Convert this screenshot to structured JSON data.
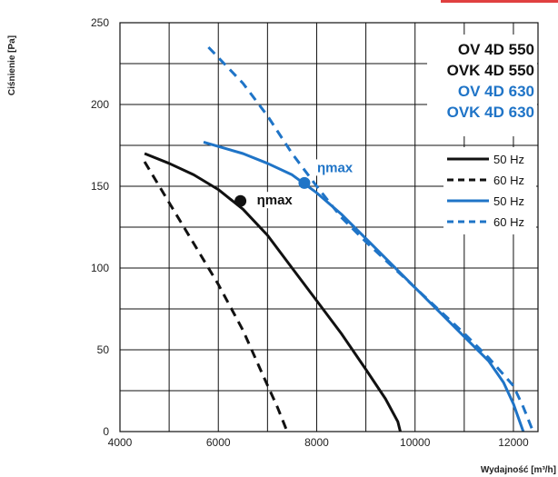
{
  "chart_data": {
    "type": "line",
    "title": "",
    "xlabel": "Wydajność [m³/h]",
    "ylabel": "Ciśnienie [Pa]",
    "xlim": [
      4000,
      12500
    ],
    "ylim": [
      0,
      250
    ],
    "x_ticks": [
      4000,
      6000,
      8000,
      10000,
      12000
    ],
    "y_ticks": [
      0,
      50,
      100,
      150,
      200,
      250
    ],
    "grid": true,
    "colors": {
      "black": "#111111",
      "blue": "#1f74c7",
      "accent_bar": "#e04040"
    },
    "models": [
      {
        "label": "OV 4D 550",
        "color": "#111111"
      },
      {
        "label": "OVK 4D 550",
        "color": "#111111"
      },
      {
        "label": "OV 4D 630",
        "color": "#1f74c7"
      },
      {
        "label": "OVK 4D 630",
        "color": "#1f74c7"
      }
    ],
    "legend": [
      {
        "label": "50 Hz",
        "color": "#111111",
        "dash": false
      },
      {
        "label": "60 Hz",
        "color": "#111111",
        "dash": true
      },
      {
        "label": "50 Hz",
        "color": "#1f74c7",
        "dash": false
      },
      {
        "label": "60 Hz",
        "color": "#1f74c7",
        "dash": true
      }
    ],
    "series": [
      {
        "color": "#111111",
        "dash": false,
        "points": [
          [
            4500,
            170
          ],
          [
            5000,
            164
          ],
          [
            5500,
            157
          ],
          [
            6000,
            148
          ],
          [
            6500,
            136
          ],
          [
            7000,
            120
          ],
          [
            7500,
            100
          ],
          [
            8000,
            80
          ],
          [
            8500,
            60
          ],
          [
            9000,
            38
          ],
          [
            9400,
            20
          ],
          [
            9650,
            6
          ],
          [
            9700,
            0
          ]
        ]
      },
      {
        "color": "#111111",
        "dash": true,
        "points": [
          [
            4500,
            165
          ],
          [
            5000,
            140
          ],
          [
            5500,
            115
          ],
          [
            6000,
            90
          ],
          [
            6500,
            62
          ],
          [
            6900,
            35
          ],
          [
            7200,
            15
          ],
          [
            7400,
            0
          ]
        ]
      },
      {
        "color": "#1f74c7",
        "dash": false,
        "points": [
          [
            5700,
            177
          ],
          [
            6500,
            170
          ],
          [
            7000,
            164
          ],
          [
            7500,
            157
          ],
          [
            8000,
            146
          ],
          [
            8500,
            133
          ],
          [
            9000,
            118
          ],
          [
            9500,
            103
          ],
          [
            10000,
            88
          ],
          [
            10500,
            73
          ],
          [
            11000,
            58
          ],
          [
            11500,
            43
          ],
          [
            11800,
            30
          ],
          [
            12000,
            17
          ],
          [
            12200,
            0
          ]
        ]
      },
      {
        "color": "#1f74c7",
        "dash": true,
        "points": [
          [
            5800,
            235
          ],
          [
            6500,
            213
          ],
          [
            7000,
            193
          ],
          [
            7500,
            170
          ],
          [
            8000,
            150
          ],
          [
            8500,
            131
          ],
          [
            9000,
            116
          ],
          [
            9500,
            102
          ],
          [
            10000,
            88
          ],
          [
            10500,
            74
          ],
          [
            11000,
            60
          ],
          [
            11500,
            45
          ],
          [
            12000,
            28
          ],
          [
            12200,
            15
          ],
          [
            12400,
            0
          ]
        ]
      }
    ],
    "annotations": [
      {
        "text": "ηmax",
        "x": 6450,
        "y": 141,
        "color": "#111111"
      },
      {
        "text": "ηmax",
        "x": 7750,
        "y": 152,
        "color": "#1f74c7"
      }
    ]
  }
}
